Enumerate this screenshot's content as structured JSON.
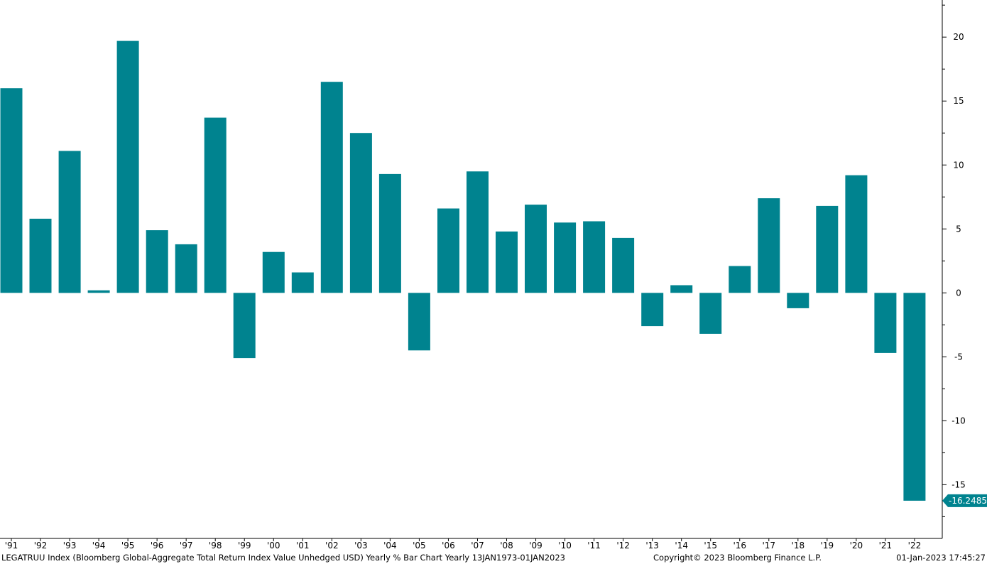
{
  "chart_data": {
    "type": "bar",
    "categories": [
      "'91",
      "'92",
      "'93",
      "'94",
      "'95",
      "'96",
      "'97",
      "'98",
      "'99",
      "'00",
      "'01",
      "'02",
      "'03",
      "'04",
      "'05",
      "'06",
      "'07",
      "'08",
      "'09",
      "'10",
      "'11",
      "'12",
      "'13",
      "'14",
      "'15",
      "'16",
      "'17",
      "'18",
      "'19",
      "'20",
      "'21",
      "'22"
    ],
    "values": [
      16.0,
      5.8,
      11.1,
      0.2,
      19.7,
      4.9,
      3.8,
      13.7,
      -5.1,
      3.2,
      1.6,
      16.5,
      12.5,
      9.3,
      -4.5,
      6.6,
      9.5,
      4.8,
      6.9,
      5.5,
      5.6,
      4.3,
      -2.6,
      0.6,
      -3.2,
      2.1,
      7.4,
      -1.2,
      6.8,
      9.2,
      -4.7,
      -16.2485
    ],
    "yticks": [
      -15,
      -10,
      -5,
      0,
      5,
      10,
      15,
      20
    ],
    "ylim": [
      -19.2,
      22.9
    ],
    "bar_color": "#00838f",
    "last_value_label": "-16.2485",
    "grid": false,
    "y_axis_side": "right"
  },
  "footer": {
    "description": "LEGATRUU Index (Bloomberg Global-Aggregate Total Return Index Value Unhedged USD) Yearly % Bar Chart  Yearly 13JAN1973-01JAN2023",
    "copyright": "Copyright© 2023 Bloomberg Finance L.P.",
    "date": "01-Jan-2023 17:45:27"
  }
}
